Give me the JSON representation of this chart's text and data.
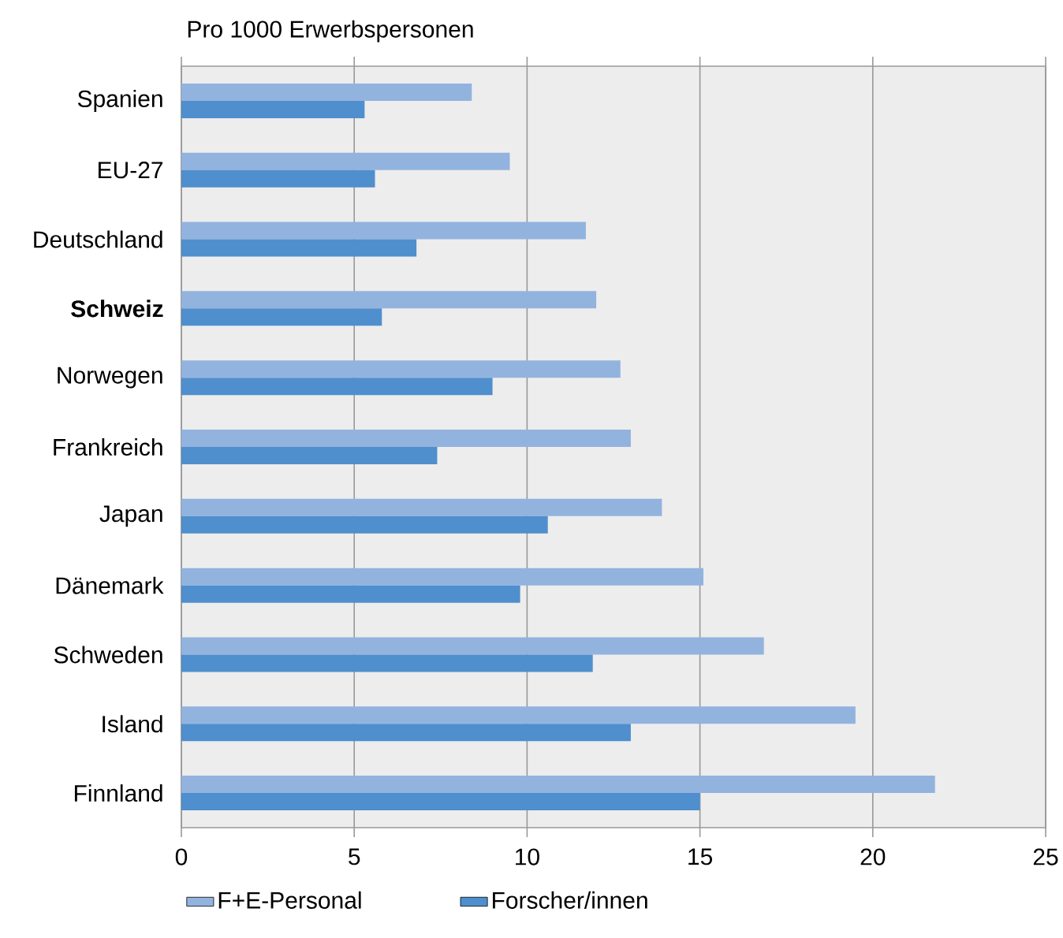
{
  "chart_data": {
    "type": "bar",
    "orientation": "horizontal",
    "title": "Pro 1000 Erwerbspersonen",
    "categories": [
      "Spanien",
      "EU-27",
      "Deutschland",
      "**Schweiz**",
      "Norwegen",
      "Frankreich",
      "Japan",
      "Dänemark",
      "Schweden",
      "Island",
      "Finnland"
    ],
    "series": [
      {
        "name": "F+E-Personal",
        "color": "#93b3df",
        "values": [
          8.4,
          9.5,
          11.7,
          12.0,
          12.7,
          13.0,
          13.9,
          15.1,
          16.85,
          19.5,
          21.8
        ]
      },
      {
        "name": "Forscher/innen",
        "color": "#4f8fcd",
        "values": [
          5.3,
          5.6,
          6.8,
          5.8,
          9.0,
          7.4,
          10.6,
          9.8,
          11.9,
          13.0,
          15.0
        ]
      }
    ],
    "xlim": [
      0,
      25
    ],
    "xticks": [
      0,
      5,
      10,
      15,
      20,
      25
    ],
    "grid": "x",
    "legend": "bottom"
  }
}
